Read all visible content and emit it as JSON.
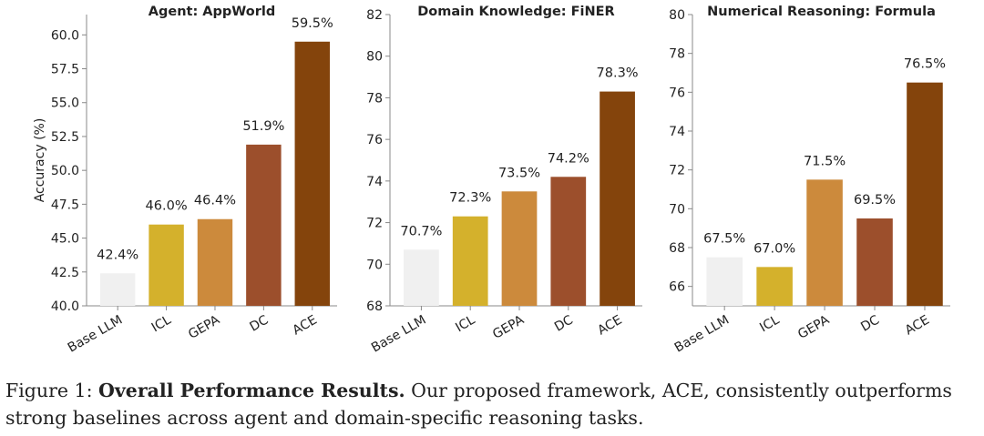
{
  "chart_data": [
    {
      "type": "bar",
      "title": "Agent: AppWorld",
      "ylabel": "Accuracy (%)",
      "categories": [
        "Base LLM",
        "ICL",
        "GEPA",
        "DC",
        "ACE"
      ],
      "values": [
        42.4,
        46.0,
        46.4,
        51.9,
        59.5
      ],
      "value_labels": [
        "42.4%",
        "46.0%",
        "46.4%",
        "51.9%",
        "59.5%"
      ],
      "ylim": [
        40.0,
        61.5
      ],
      "yticks": [
        40.0,
        42.5,
        45.0,
        47.5,
        50.0,
        52.5,
        55.0,
        57.5,
        60.0
      ],
      "ytick_labels": [
        "40.0",
        "42.5",
        "45.0",
        "47.5",
        "50.0",
        "52.5",
        "55.0",
        "57.5",
        "60.0"
      ],
      "grid": false
    },
    {
      "type": "bar",
      "title": "Domain Knowledge: FiNER",
      "ylabel": "",
      "categories": [
        "Base LLM",
        "ICL",
        "GEPA",
        "DC",
        "ACE"
      ],
      "values": [
        70.7,
        72.3,
        73.5,
        74.2,
        78.3
      ],
      "value_labels": [
        "70.7%",
        "72.3%",
        "73.5%",
        "74.2%",
        "78.3%"
      ],
      "ylim": [
        68,
        82
      ],
      "yticks": [
        68,
        70,
        72,
        74,
        76,
        78,
        80,
        82
      ],
      "ytick_labels": [
        "68",
        "70",
        "72",
        "74",
        "76",
        "78",
        "80",
        "82"
      ],
      "grid": false
    },
    {
      "type": "bar",
      "title": "Numerical Reasoning: Formula",
      "ylabel": "",
      "categories": [
        "Base LLM",
        "ICL",
        "GEPA",
        "DC",
        "ACE"
      ],
      "values": [
        67.5,
        67.0,
        71.5,
        69.5,
        76.5
      ],
      "value_labels": [
        "67.5%",
        "67.0%",
        "71.5%",
        "69.5%",
        "76.5%"
      ],
      "ylim": [
        65,
        80
      ],
      "yticks": [
        66,
        68,
        70,
        72,
        74,
        76,
        78,
        80
      ],
      "ytick_labels": [
        "66",
        "68",
        "70",
        "72",
        "74",
        "76",
        "78",
        "80"
      ],
      "grid": false
    }
  ],
  "bar_colors": [
    "#f0f0f0",
    "#d4b12c",
    "#cc8a3c",
    "#9c4f2c",
    "#84440c"
  ],
  "caption": {
    "prefix": "Figure 1: ",
    "bold": "Overall Performance Results.",
    "text": " Our proposed framework, ACE, consistently outperforms strong baselines across agent and domain-specific reasoning tasks."
  }
}
